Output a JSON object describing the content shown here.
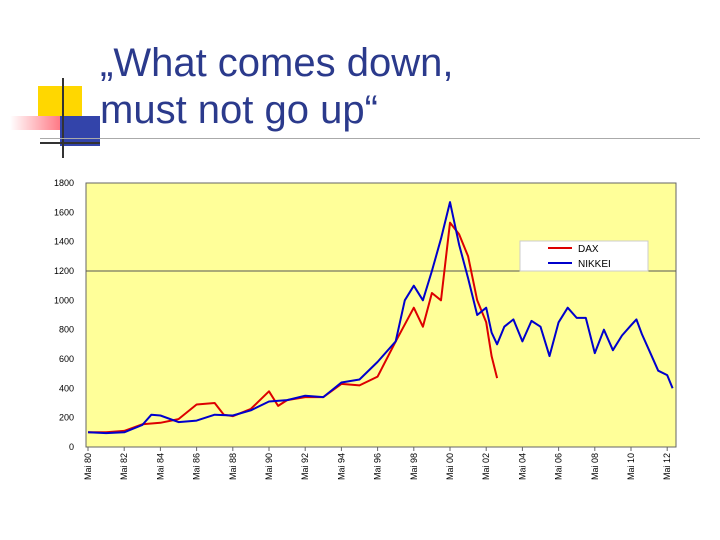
{
  "slide": {
    "title": "„What comes down,\nmust not go up“"
  },
  "colors": {
    "title": "#2b3a8c",
    "plot_bg": "#ffff99",
    "dax": "#dd0000",
    "nikkei": "#0000cc",
    "deco_yellow": "#ffd700",
    "deco_blue": "#3344aa",
    "deco_red": "#ff4455"
  },
  "chart_data": {
    "type": "line",
    "title": "",
    "xlabel": "",
    "ylabel": "",
    "ylim": [
      0,
      1800
    ],
    "yticks": [
      0,
      200,
      400,
      600,
      800,
      1000,
      1200,
      1400,
      1600,
      1800
    ],
    "reference_line": 1200,
    "legend_position": "top-right",
    "x_tick_labels": [
      "Mai 80",
      "Mai 82",
      "Mai 84",
      "Mai 86",
      "Mai 88",
      "Mai 90",
      "Mai 92",
      "Mai 94",
      "Mai 96",
      "Mai 98",
      "Mai 00",
      "Mai 02",
      "Mai 04",
      "Mai 06",
      "Mai 08",
      "Mai 10",
      "Mai 12"
    ],
    "series": [
      {
        "name": "DAX",
        "color": "#dd0000",
        "points": [
          [
            "Mai 80",
            100
          ],
          [
            "Mai 81",
            100
          ],
          [
            "Mai 82",
            110
          ],
          [
            "Mai 83",
            155
          ],
          [
            "Mai 84",
            165
          ],
          [
            "Mai 85",
            190
          ],
          [
            "Mai 86",
            290
          ],
          [
            "Mai 87",
            300
          ],
          [
            "Mai 87.5",
            220
          ],
          [
            "Mai 88",
            210
          ],
          [
            "Mai 89",
            260
          ],
          [
            "Mai 90",
            380
          ],
          [
            "Mai 90.5",
            280
          ],
          [
            "Mai 91",
            320
          ],
          [
            "Mai 92",
            340
          ],
          [
            "Mai 93",
            340
          ],
          [
            "Mai 94",
            430
          ],
          [
            "Mai 95",
            420
          ],
          [
            "Mai 96",
            480
          ],
          [
            "Mai 97",
            720
          ],
          [
            "Mai 98",
            950
          ],
          [
            "Mai 98.5",
            820
          ],
          [
            "Mai 99",
            1050
          ],
          [
            "Mai 99.5",
            1000
          ],
          [
            "Mai 00",
            1530
          ],
          [
            "Mai 00.5",
            1450
          ],
          [
            "Mai 01",
            1300
          ],
          [
            "Mai 01.5",
            1000
          ],
          [
            "Mai 02",
            850
          ],
          [
            "Mai 02.3",
            620
          ],
          [
            "Mai 02.6",
            470
          ]
        ]
      },
      {
        "name": "NIKKEI",
        "color": "#0000cc",
        "points": [
          [
            "Mai 80",
            100
          ],
          [
            "Mai 81",
            95
          ],
          [
            "Mai 82",
            100
          ],
          [
            "Mai 83",
            150
          ],
          [
            "Mai 83.5",
            220
          ],
          [
            "Mai 84",
            215
          ],
          [
            "Mai 85",
            170
          ],
          [
            "Mai 86",
            180
          ],
          [
            "Mai 87",
            220
          ],
          [
            "Mai 88",
            215
          ],
          [
            "Mai 89",
            250
          ],
          [
            "Mai 90",
            310
          ],
          [
            "Mai 91",
            320
          ],
          [
            "Mai 92",
            350
          ],
          [
            "Mai 93",
            340
          ],
          [
            "Mai 94",
            440
          ],
          [
            "Mai 95",
            460
          ],
          [
            "Mai 96",
            580
          ],
          [
            "Mai 97",
            720
          ],
          [
            "Mai 97.5",
            1000
          ],
          [
            "Mai 98",
            1100
          ],
          [
            "Mai 98.5",
            1000
          ],
          [
            "Mai 99",
            1200
          ],
          [
            "Mai 99.5",
            1420
          ],
          [
            "Mai 00",
            1670
          ],
          [
            "Mai 00.5",
            1380
          ],
          [
            "Mai 01",
            1150
          ],
          [
            "Mai 01.5",
            900
          ],
          [
            "Mai 02",
            950
          ],
          [
            "Mai 02.3",
            780
          ],
          [
            "Mai 02.6",
            700
          ],
          [
            "Mai 03",
            820
          ],
          [
            "Mai 03.5",
            870
          ],
          [
            "Mai 04",
            720
          ],
          [
            "Mai 04.5",
            860
          ],
          [
            "Mai 05",
            820
          ],
          [
            "Mai 05.5",
            620
          ],
          [
            "Mai 06",
            850
          ],
          [
            "Mai 06.5",
            950
          ],
          [
            "Mai 07",
            880
          ],
          [
            "Mai 07.5",
            880
          ],
          [
            "Mai 08",
            640
          ],
          [
            "Mai 08.5",
            800
          ],
          [
            "Mai 09",
            660
          ],
          [
            "Mai 09.5",
            760
          ],
          [
            "Mai 10",
            830
          ],
          [
            "Mai 10.3",
            870
          ],
          [
            "Mai 10.6",
            770
          ],
          [
            "Mai 11",
            660
          ],
          [
            "Mai 11.5",
            520
          ],
          [
            "Mai 12",
            490
          ],
          [
            "Mai 12.3",
            400
          ]
        ]
      }
    ]
  }
}
